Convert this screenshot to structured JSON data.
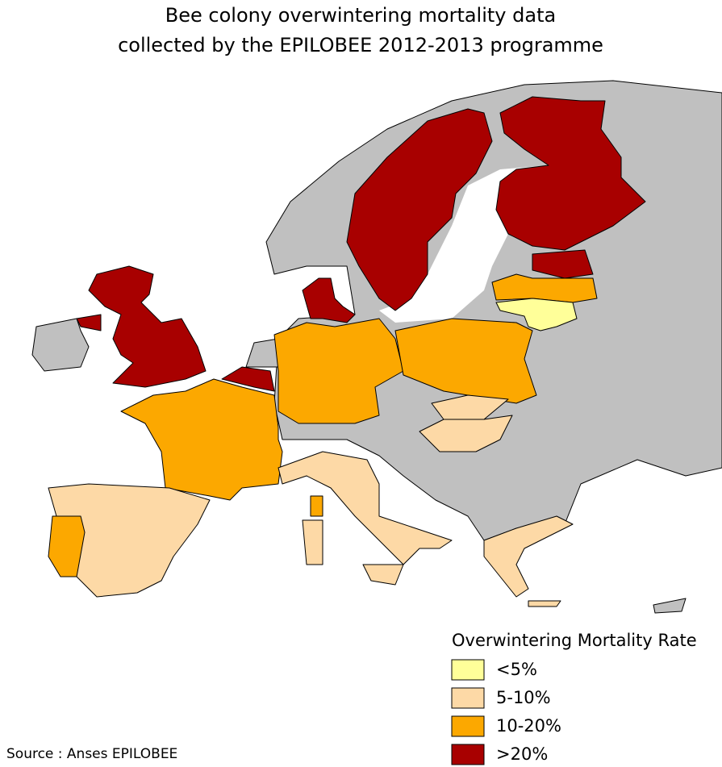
{
  "header": {
    "title": [
      "Bee colony overwintering mortality data",
      "collected by the EPILOBEE 2012-2013 programme"
    ]
  },
  "legend": {
    "title": "Overwintering Mortality Rate",
    "items": [
      {
        "label": "<5%",
        "color": "#ffff99"
      },
      {
        "label": "5-10%",
        "color": "#fdd9a6"
      },
      {
        "label": "10-20%",
        "color": "#fca800"
      },
      {
        "label": ">20%",
        "color": "#a80000"
      }
    ]
  },
  "footer": {
    "source": "Source : Anses EPILOBEE"
  }
}
